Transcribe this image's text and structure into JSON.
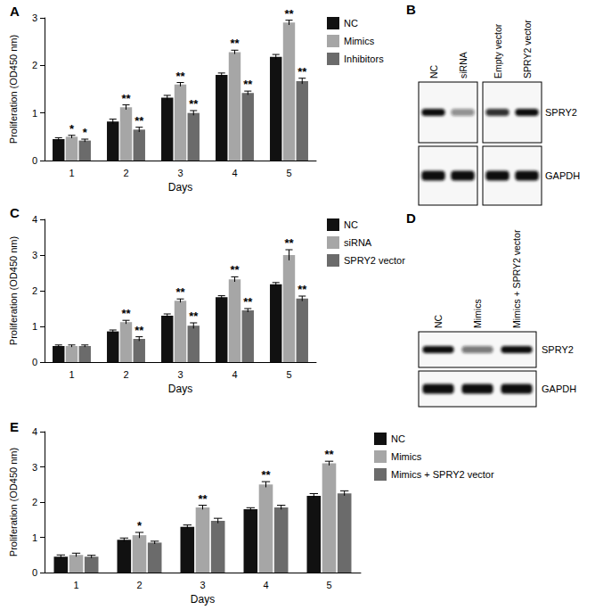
{
  "chart_data": [
    {
      "type": "bar",
      "title": "A",
      "xlabel": "Days",
      "ylabel": "Proliferation (OD450 nm)",
      "categories": [
        "1",
        "2",
        "3",
        "4",
        "5"
      ],
      "ylim": [
        0,
        3
      ],
      "yticks": [
        0,
        1,
        2,
        3
      ],
      "grid": false,
      "legend": "right",
      "series": [
        {
          "name": "NC",
          "color": "#111111",
          "values": [
            0.45,
            0.82,
            1.32,
            1.8,
            2.18
          ],
          "errors": [
            0.03,
            0.05,
            0.05,
            0.04,
            0.05
          ],
          "significance": [
            null,
            null,
            null,
            null,
            null
          ]
        },
        {
          "name": "Mimics",
          "color": "#a6a6a6",
          "values": [
            0.5,
            1.12,
            1.6,
            2.28,
            2.9
          ],
          "errors": [
            0.03,
            0.05,
            0.04,
            0.04,
            0.05
          ],
          "significance": [
            "*",
            "**",
            "**",
            "**",
            "**"
          ]
        },
        {
          "name": "Inhibitors",
          "color": "#6b6b6b",
          "values": [
            0.42,
            0.65,
            1.0,
            1.42,
            1.67
          ],
          "errors": [
            0.03,
            0.05,
            0.05,
            0.04,
            0.06
          ],
          "significance": [
            "*",
            "**",
            "**",
            "**",
            "**"
          ]
        }
      ]
    },
    {
      "type": "bar",
      "title": "C",
      "xlabel": "Days",
      "ylabel": "Proliferation (OD450 nm)",
      "categories": [
        "1",
        "2",
        "3",
        "4",
        "5"
      ],
      "ylim": [
        0,
        4
      ],
      "yticks": [
        0,
        1,
        2,
        3,
        4
      ],
      "grid": false,
      "legend": "right",
      "series": [
        {
          "name": "NC",
          "color": "#111111",
          "values": [
            0.45,
            0.86,
            1.3,
            1.82,
            2.18
          ],
          "errors": [
            0.03,
            0.04,
            0.05,
            0.04,
            0.05
          ],
          "significance": [
            null,
            null,
            null,
            null,
            null
          ]
        },
        {
          "name": "siRNA",
          "color": "#a6a6a6",
          "values": [
            0.45,
            1.12,
            1.72,
            2.32,
            3.0
          ],
          "errors": [
            0.03,
            0.05,
            0.05,
            0.07,
            0.15
          ],
          "significance": [
            null,
            "**",
            "**",
            "**",
            "**"
          ]
        },
        {
          "name": "SPRY2 vector",
          "color": "#6b6b6b",
          "values": [
            0.45,
            0.65,
            1.02,
            1.45,
            1.78
          ],
          "errors": [
            0.03,
            0.06,
            0.08,
            0.05,
            0.07
          ],
          "significance": [
            null,
            "**",
            "**",
            "**",
            "**"
          ]
        }
      ]
    },
    {
      "type": "bar",
      "title": "E",
      "xlabel": "Days",
      "ylabel": "Proliferation (OD450 nm)",
      "categories": [
        "1",
        "2",
        "3",
        "4",
        "5"
      ],
      "ylim": [
        0,
        4
      ],
      "yticks": [
        0,
        1,
        2,
        3,
        4
      ],
      "grid": false,
      "legend": "right",
      "series": [
        {
          "name": "NC",
          "color": "#111111",
          "values": [
            0.45,
            0.93,
            1.3,
            1.8,
            2.18
          ],
          "errors": [
            0.05,
            0.05,
            0.05,
            0.04,
            0.06
          ],
          "significance": [
            null,
            null,
            null,
            null,
            null
          ]
        },
        {
          "name": "Mimics",
          "color": "#a6a6a6",
          "values": [
            0.5,
            1.06,
            1.85,
            2.5,
            3.1
          ],
          "errors": [
            0.05,
            0.08,
            0.06,
            0.08,
            0.06
          ],
          "significance": [
            null,
            "*",
            "**",
            "**",
            "**"
          ]
        },
        {
          "name": "Mimics + SPRY2 vector",
          "color": "#6b6b6b",
          "values": [
            0.45,
            0.85,
            1.47,
            1.85,
            2.25
          ],
          "errors": [
            0.04,
            0.04,
            0.07,
            0.06,
            0.07
          ],
          "significance": [
            null,
            null,
            null,
            null,
            null
          ]
        }
      ]
    }
  ],
  "blots": [
    {
      "title": "B",
      "panels": [
        {
          "lanes": [
            "NC",
            "siRNA"
          ]
        },
        {
          "lanes": [
            "Empty vector",
            "SPRY2 vector"
          ]
        }
      ],
      "rows": [
        "SPRY2",
        "GAPDH"
      ]
    },
    {
      "title": "D",
      "panels": [
        {
          "lanes": [
            "NC",
            "Mimics",
            "Mimics + SPRY2 vector"
          ]
        }
      ],
      "rows": [
        "SPRY2",
        "GAPDH"
      ]
    }
  ]
}
